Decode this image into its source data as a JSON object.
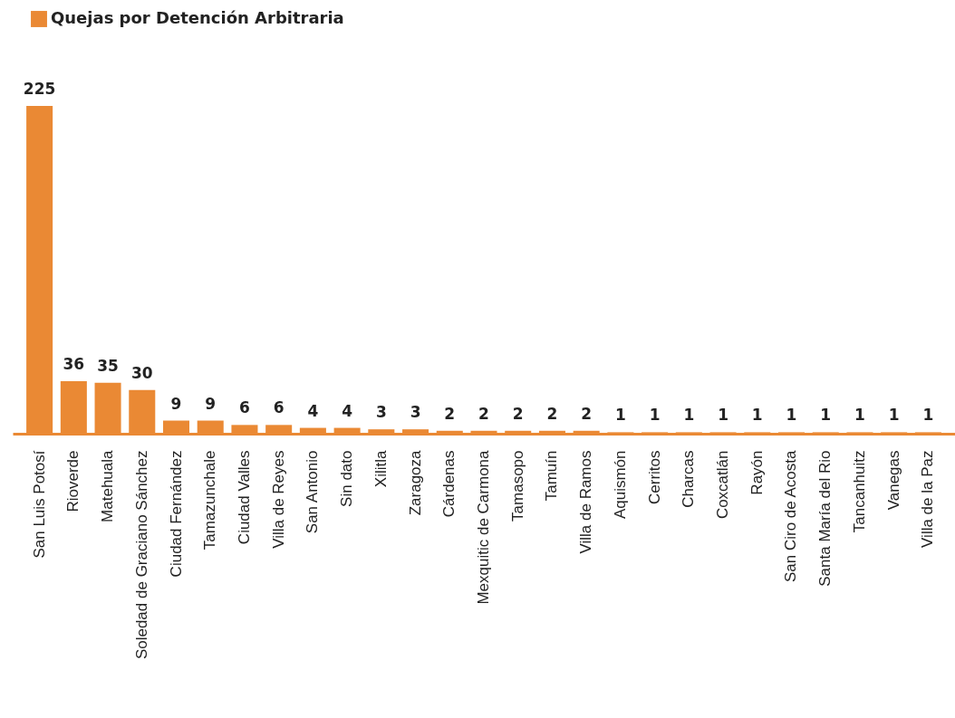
{
  "chart_data": {
    "type": "bar",
    "categories": [
      "San Luis Potosí",
      "Rioverde",
      "Matehuala",
      "Soledad de Graciano Sánchez",
      "Ciudad Fernández",
      "Tamazunchale",
      "Ciudad Valles",
      "Villa de Reyes",
      "San Antonio",
      "Sin dato",
      "Xilitla",
      "Zaragoza",
      "Cárdenas",
      "Mexquitic de Carmona",
      "Tamasopo",
      "Tamuín",
      "Villa de Ramos",
      "Aquismón",
      "Cerritos",
      "Charcas",
      "Coxcatlán",
      "Rayón",
      "San Ciro de Acosta",
      "Santa María del Rio",
      "Tancanhuitz",
      "Vanegas",
      "Villa de la Paz"
    ],
    "series": [
      {
        "name": "Quejas por Detención Arbitraria",
        "color": "#ea8934",
        "values": [
          225,
          36,
          35,
          30,
          9,
          9,
          6,
          6,
          4,
          4,
          3,
          3,
          2,
          2,
          2,
          2,
          2,
          1,
          1,
          1,
          1,
          1,
          1,
          1,
          1,
          1,
          1
        ]
      }
    ],
    "data_labels": true,
    "legend": "top left"
  }
}
